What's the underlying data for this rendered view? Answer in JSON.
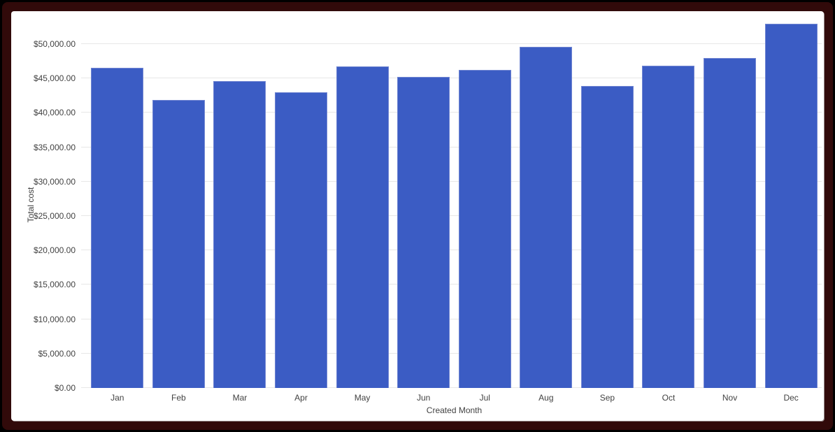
{
  "frame": {
    "outer_border_color": "#000000",
    "mat_color": "#310a0a",
    "card_background": "#ffffff"
  },
  "chart_data": {
    "type": "bar",
    "title": "",
    "categories": [
      "Jan",
      "Feb",
      "Mar",
      "Apr",
      "May",
      "Jun",
      "Jul",
      "Aug",
      "Sep",
      "Oct",
      "Nov",
      "Dec"
    ],
    "values": [
      46500,
      41900,
      44600,
      43000,
      46700,
      45200,
      46200,
      49600,
      43900,
      46900,
      48000,
      52900
    ],
    "xlabel": "Created Month",
    "ylabel": "Total cost",
    "ylim": [
      0,
      53250
    ],
    "y_ticks": [
      {
        "value": 0,
        "label": "$0.00"
      },
      {
        "value": 5000,
        "label": "$5,000.00"
      },
      {
        "value": 10000,
        "label": "$10,000.00"
      },
      {
        "value": 15000,
        "label": "$15,000.00"
      },
      {
        "value": 20000,
        "label": "$20,000.00"
      },
      {
        "value": 25000,
        "label": "$25,000.00"
      },
      {
        "value": 30000,
        "label": "$30,000.00"
      },
      {
        "value": 35000,
        "label": "$35,000.00"
      },
      {
        "value": 40000,
        "label": "$40,000.00"
      },
      {
        "value": 45000,
        "label": "$45,000.00"
      },
      {
        "value": 50000,
        "label": "$50,000.00"
      }
    ],
    "grid": "horizontal",
    "legend": "none",
    "bar_color": "#3b5cc4",
    "gridline_color": "#e7e7e7",
    "label_color": "#424242"
  }
}
